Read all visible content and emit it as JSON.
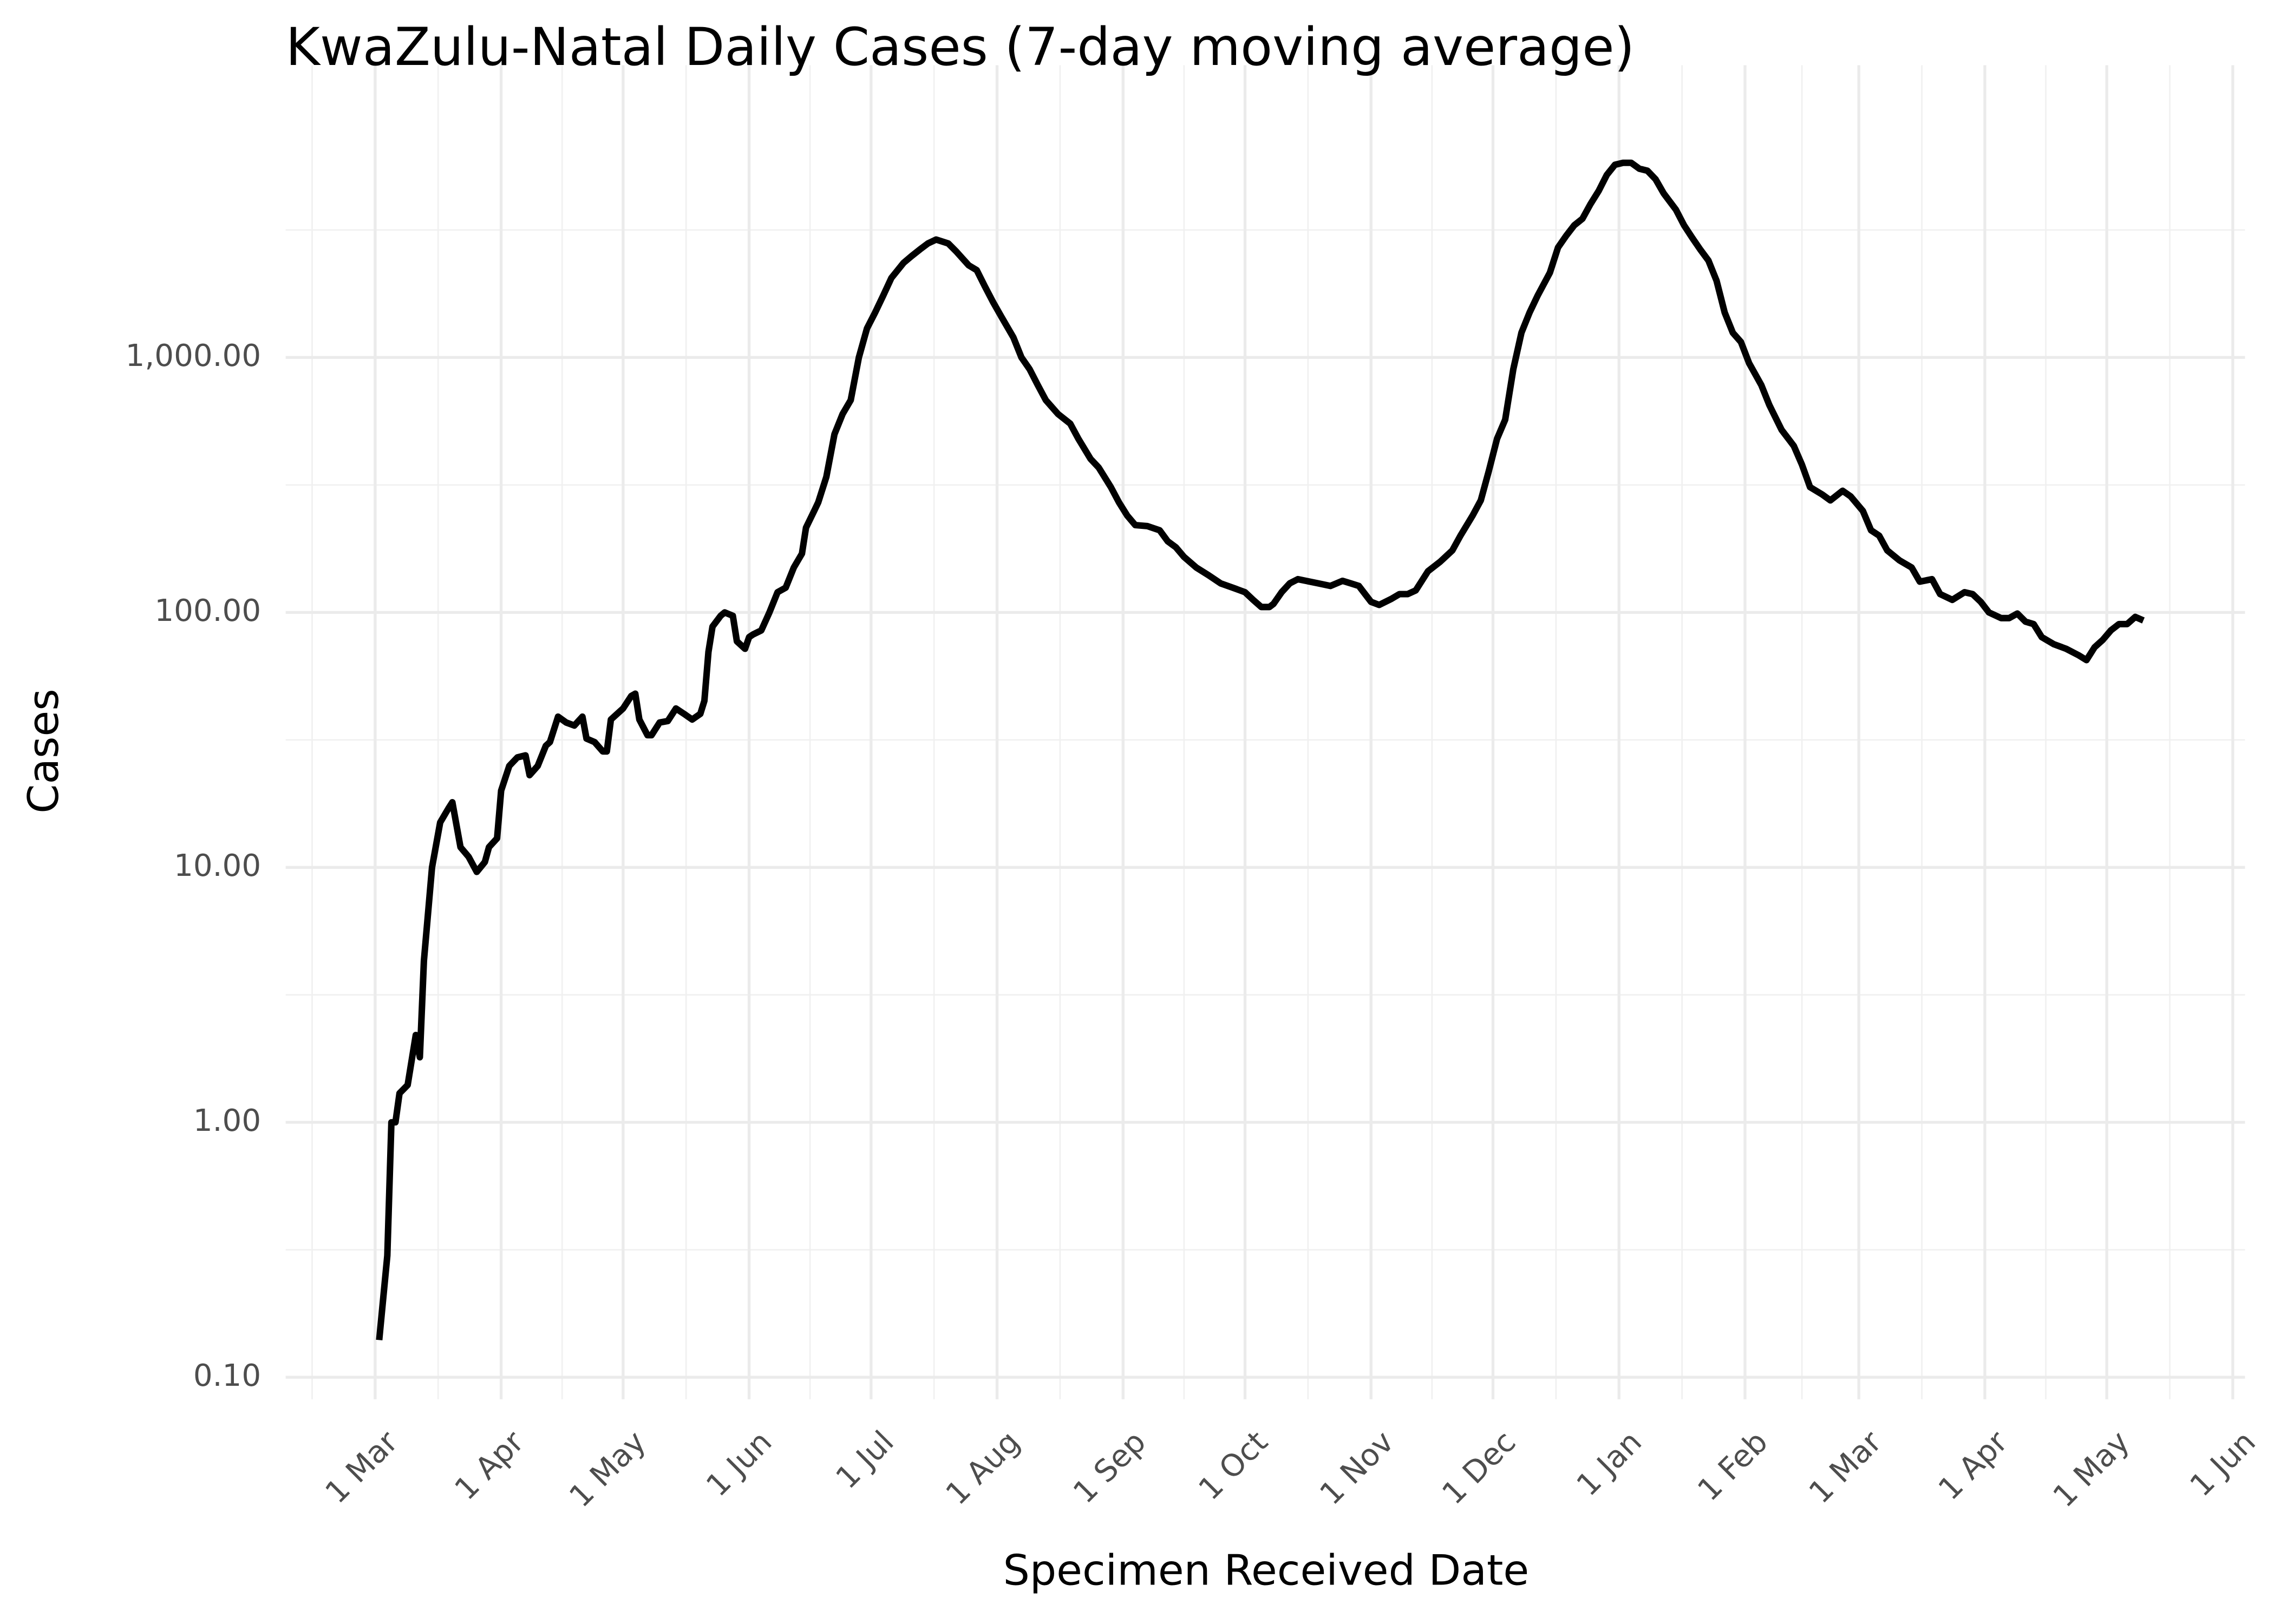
{
  "chart_data": {
    "type": "line",
    "title": "KwaZulu-Natal Daily Cases (7-day moving average)",
    "x_label": "Specimen Received Date",
    "y_label": "Cases",
    "log_y": true,
    "grid": true,
    "xlim": [
      -22,
      460
    ],
    "xticks": [
      {
        "value": 0,
        "label": "1 Mar"
      },
      {
        "value": 31,
        "label": "1 Apr"
      },
      {
        "value": 61,
        "label": "1 May"
      },
      {
        "value": 92,
        "label": "1 Jun"
      },
      {
        "value": 122,
        "label": "1 Jul"
      },
      {
        "value": 153,
        "label": "1 Aug"
      },
      {
        "value": 184,
        "label": "1 Sep"
      },
      {
        "value": 214,
        "label": "1 Oct"
      },
      {
        "value": 245,
        "label": "1 Nov"
      },
      {
        "value": 275,
        "label": "1 Dec"
      },
      {
        "value": 306,
        "label": "1 Jan"
      },
      {
        "value": 337,
        "label": "1 Feb"
      },
      {
        "value": 365,
        "label": "1 Mar"
      },
      {
        "value": 396,
        "label": "1 Apr"
      },
      {
        "value": 426,
        "label": "1 May"
      },
      {
        "value": 457,
        "label": "1 Jun"
      }
    ],
    "ylim": [
      0.082,
      14000
    ],
    "yticks": [
      {
        "value": 0.1,
        "label": "0.10"
      },
      {
        "value": 1,
        "label": "1.00"
      },
      {
        "value": 10,
        "label": "10.00"
      },
      {
        "value": 100,
        "label": "100.00"
      },
      {
        "value": 1000,
        "label": "1,000.00"
      }
    ],
    "series": [
      {
        "name": "Cases",
        "color": "#000000",
        "x": [
          1,
          3,
          4,
          5,
          6,
          8,
          10,
          11,
          12,
          14,
          16,
          18,
          19,
          21,
          23,
          25,
          27,
          28,
          30,
          31,
          33,
          35,
          37,
          38,
          40,
          42,
          43,
          45,
          47,
          49,
          51,
          52,
          54,
          56,
          57,
          58,
          61,
          63,
          64,
          65,
          67,
          68,
          70,
          72,
          74,
          76,
          78,
          80,
          81,
          82,
          83,
          85,
          86,
          88,
          89,
          91,
          92,
          93,
          95,
          97,
          99,
          101,
          103,
          105,
          106,
          108,
          109,
          111,
          113,
          115,
          117,
          119,
          121,
          123,
          125,
          127,
          130,
          132,
          134,
          136,
          138,
          141,
          143,
          146,
          148,
          150,
          152,
          154,
          157,
          159,
          161,
          163,
          165,
          168,
          171,
          173,
          176,
          178,
          181,
          183,
          185,
          187,
          190,
          193,
          195,
          197,
          199,
          202,
          205,
          208,
          211,
          214,
          216,
          218,
          220,
          221,
          223,
          225,
          227,
          229,
          232,
          235,
          238,
          240,
          242,
          245,
          247,
          250,
          252,
          254,
          256,
          259,
          262,
          265,
          267,
          270,
          272,
          274,
          276,
          278,
          280,
          282,
          284,
          286,
          289,
          291,
          293,
          295,
          297,
          299,
          301,
          303,
          305,
          307,
          309,
          311,
          313,
          315,
          317,
          320,
          322,
          324,
          326,
          328,
          330,
          332,
          334,
          336,
          338,
          341,
          343,
          346,
          349,
          351,
          353,
          356,
          358,
          361,
          363,
          366,
          368,
          370,
          372,
          375,
          378,
          380,
          383,
          385,
          388,
          391,
          393,
          395,
          397,
          400,
          402,
          404,
          406,
          408,
          410,
          413,
          416,
          419,
          421,
          423,
          425,
          427,
          429,
          431,
          433,
          435
        ],
        "values": [
          0.14,
          0.3,
          1.0,
          1.0,
          1.3,
          1.4,
          2.2,
          1.8,
          4.3,
          10,
          15,
          17,
          18,
          12,
          11,
          9.6,
          10.5,
          12,
          13,
          20,
          25,
          27,
          27.5,
          23,
          25,
          30,
          31,
          39,
          37,
          36,
          39,
          32,
          31,
          28.5,
          28.5,
          38,
          42,
          47,
          48,
          38,
          33,
          33,
          37,
          37.5,
          42,
          40,
          38,
          40,
          45,
          70,
          88,
          97,
          100,
          97,
          77,
          72,
          80,
          82,
          85,
          100,
          120,
          125,
          150,
          170,
          215,
          250,
          270,
          340,
          500,
          600,
          680,
          1000,
          1300,
          1500,
          1750,
          2050,
          2350,
          2500,
          2650,
          2800,
          2900,
          2800,
          2600,
          2300,
          2200,
          1900,
          1650,
          1450,
          1200,
          1000,
          900,
          780,
          680,
          600,
          550,
          480,
          400,
          370,
          310,
          270,
          240,
          220,
          218,
          210,
          190,
          180,
          165,
          150,
          140,
          130,
          125,
          120,
          112,
          105,
          105,
          108,
          120,
          130,
          135,
          133,
          130,
          127,
          133,
          130,
          127,
          110,
          107,
          113,
          118,
          118,
          122,
          145,
          158,
          175,
          200,
          240,
          275,
          360,
          480,
          570,
          900,
          1250,
          1500,
          1750,
          2150,
          2700,
          3000,
          3300,
          3500,
          4000,
          4500,
          5200,
          5700,
          5800,
          5800,
          5500,
          5400,
          5000,
          4400,
          3800,
          3300,
          2950,
          2650,
          2400,
          2000,
          1500,
          1250,
          1150,
          950,
          780,
          650,
          520,
          450,
          380,
          310,
          290,
          275,
          300,
          285,
          250,
          210,
          200,
          175,
          160,
          150,
          132,
          135,
          118,
          112,
          120,
          118,
          110,
          100,
          95,
          95,
          99,
          92,
          90,
          80,
          75,
          72,
          68,
          65,
          73,
          78,
          85,
          90,
          90,
          96,
          93
        ]
      }
    ]
  }
}
